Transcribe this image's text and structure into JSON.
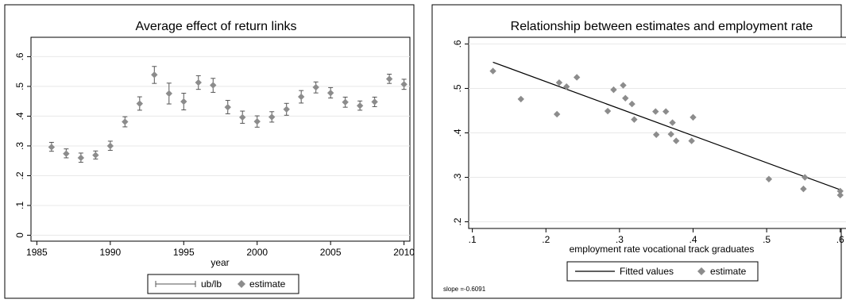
{
  "chart_data": [
    {
      "type": "scatter",
      "title": "Average effect of return links",
      "xlabel": "year",
      "ylabel": "",
      "xlim": [
        1984.6,
        2010.4
      ],
      "ylim": [
        -0.02,
        0.665
      ],
      "xticks": [
        1985,
        1990,
        1995,
        2000,
        2005,
        2010
      ],
      "yticks": [
        0,
        0.1,
        0.2,
        0.3,
        0.4,
        0.5,
        0.6
      ],
      "xtick_labels": [
        "1985",
        "1990",
        "1995",
        "2000",
        "2005",
        "2010"
      ],
      "ytick_labels": [
        "0",
        ".1",
        ".2",
        ".3",
        ".4",
        ".5",
        ".6"
      ],
      "grid": true,
      "legend_position": "bottom",
      "legend": [
        "ub/lb",
        "estimate"
      ],
      "series": [
        {
          "name": "estimate",
          "x": [
            1986,
            1987,
            1988,
            1989,
            1990,
            1991,
            1992,
            1993,
            1994,
            1995,
            1996,
            1997,
            1998,
            1999,
            2000,
            2001,
            2002,
            2003,
            2004,
            2005,
            2006,
            2007,
            2008,
            2009,
            2010
          ],
          "y": [
            0.296,
            0.274,
            0.26,
            0.269,
            0.3,
            0.381,
            0.442,
            0.539,
            0.476,
            0.449,
            0.513,
            0.504,
            0.43,
            0.396,
            0.382,
            0.397,
            0.423,
            0.465,
            0.497,
            0.478,
            0.447,
            0.435,
            0.448,
            0.525,
            0.507
          ]
        },
        {
          "name": "ub/lb",
          "x": [
            1986,
            1987,
            1988,
            1989,
            1990,
            1991,
            1992,
            1993,
            1994,
            1995,
            1996,
            1997,
            1998,
            1999,
            2000,
            2001,
            2002,
            2003,
            2004,
            2005,
            2006,
            2007,
            2008,
            2009,
            2010
          ],
          "lb": [
            0.282,
            0.26,
            0.245,
            0.256,
            0.285,
            0.364,
            0.42,
            0.51,
            0.441,
            0.421,
            0.49,
            0.48,
            0.408,
            0.376,
            0.363,
            0.38,
            0.403,
            0.444,
            0.478,
            0.461,
            0.43,
            0.42,
            0.432,
            0.51,
            0.49
          ],
          "ub": [
            0.312,
            0.29,
            0.276,
            0.283,
            0.316,
            0.398,
            0.465,
            0.567,
            0.511,
            0.477,
            0.536,
            0.527,
            0.453,
            0.417,
            0.401,
            0.415,
            0.443,
            0.486,
            0.515,
            0.496,
            0.464,
            0.451,
            0.464,
            0.541,
            0.524
          ]
        }
      ]
    },
    {
      "type": "scatter",
      "title": "Relationship between estimates and employment rate",
      "xlabel": "employment rate vocational track graduates",
      "ylabel": "",
      "xlim": [
        0.095,
        0.61
      ],
      "ylim": [
        0.185,
        0.615
      ],
      "xticks": [
        0.1,
        0.2,
        0.3,
        0.4,
        0.5,
        0.6
      ],
      "yticks": [
        0.2,
        0.3,
        0.4,
        0.5,
        0.6
      ],
      "xtick_labels": [
        ".1",
        ".2",
        ".3",
        ".4",
        ".5",
        ".6"
      ],
      "ytick_labels": [
        ".2",
        ".3",
        ".4",
        ".5",
        ".6"
      ],
      "grid": true,
      "legend_position": "bottom",
      "legend": [
        "Fitted values",
        "estimate"
      ],
      "note": "slope =-0.6091",
      "series": [
        {
          "name": "estimate",
          "x": [
            0.128,
            0.166,
            0.215,
            0.218,
            0.228,
            0.242,
            0.284,
            0.292,
            0.305,
            0.308,
            0.317,
            0.32,
            0.349,
            0.35,
            0.363,
            0.37,
            0.372,
            0.377,
            0.398,
            0.4,
            0.503,
            0.55,
            0.552,
            0.6,
            0.6
          ],
          "y": [
            0.539,
            0.476,
            0.442,
            0.513,
            0.504,
            0.525,
            0.449,
            0.497,
            0.507,
            0.478,
            0.465,
            0.43,
            0.448,
            0.396,
            0.448,
            0.397,
            0.423,
            0.382,
            0.382,
            0.435,
            0.296,
            0.274,
            0.3,
            0.26,
            0.269
          ]
        },
        {
          "name": "Fitted values",
          "x": [
            0.128,
            0.6
          ],
          "y": [
            0.559,
            0.272
          ]
        }
      ]
    }
  ],
  "colors": {
    "marker": "#8c8c8c",
    "errorbar": "#555555",
    "fitline": "#000000",
    "grid": "#e8e8e8",
    "frame": "#000000"
  }
}
